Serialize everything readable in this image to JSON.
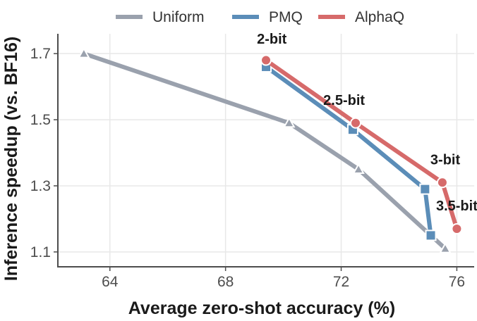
{
  "chart_data": {
    "type": "line",
    "xlabel": "Average zero-shot accuracy (%)",
    "ylabel": "Inference speedup (vs. BF16)",
    "xlim": [
      62.2,
      76.6
    ],
    "ylim": [
      1.055,
      1.76
    ],
    "xticks": [
      64,
      68,
      72,
      76
    ],
    "yticks": [
      1.1,
      1.3,
      1.5,
      1.7
    ],
    "xtick_labels": [
      "64",
      "68",
      "72",
      "76"
    ],
    "ytick_labels": [
      "1.1",
      "1.3",
      "1.5",
      "1.7"
    ],
    "grid": true,
    "legend_position": "top",
    "series": [
      {
        "name": "Uniform",
        "color": "#9aa1ad",
        "marker": "triangle",
        "points": [
          {
            "x": 63.1,
            "y": 1.7
          },
          {
            "x": 70.2,
            "y": 1.49
          },
          {
            "x": 72.6,
            "y": 1.35
          },
          {
            "x": 75.6,
            "y": 1.11
          }
        ]
      },
      {
        "name": "PMQ",
        "color": "#5b8db8",
        "marker": "square",
        "points": [
          {
            "x": 69.4,
            "y": 1.66
          },
          {
            "x": 72.4,
            "y": 1.47
          },
          {
            "x": 74.9,
            "y": 1.29
          },
          {
            "x": 75.1,
            "y": 1.15
          }
        ]
      },
      {
        "name": "AlphaQ",
        "color": "#d66a6a",
        "marker": "circle",
        "points": [
          {
            "x": 69.4,
            "y": 1.68
          },
          {
            "x": 72.5,
            "y": 1.49
          },
          {
            "x": 75.5,
            "y": 1.31
          },
          {
            "x": 76.0,
            "y": 1.17
          }
        ]
      }
    ],
    "annotations": [
      {
        "text": "2-bit",
        "x": 69.6,
        "y": 1.73
      },
      {
        "text": "2.5-bit",
        "x": 72.1,
        "y": 1.545
      },
      {
        "text": "3-bit",
        "x": 75.6,
        "y": 1.365
      },
      {
        "text": "3.5-bit",
        "x": 76.0,
        "y": 1.225
      }
    ]
  }
}
